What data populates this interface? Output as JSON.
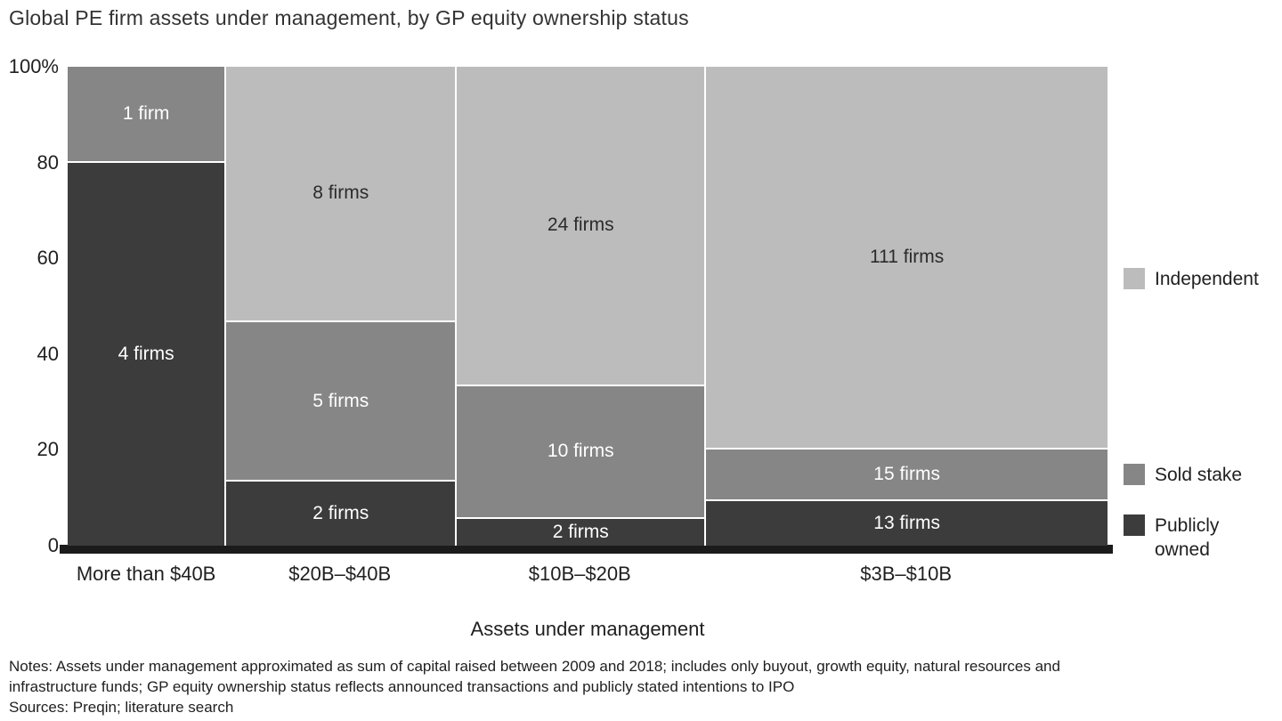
{
  "title": "Global PE firm assets under management, by GP equity ownership status",
  "chart_data": {
    "type": "bar",
    "variant": "marimekko-100pct-stacked",
    "title": "Global PE firm assets under management, by GP equity ownership status",
    "xlabel": "Assets under management",
    "ylabel": "",
    "unit": "% of firms",
    "ylim": [
      0,
      100
    ],
    "y_ticks": [
      "100%",
      "80",
      "60",
      "40",
      "20",
      "0"
    ],
    "grid": false,
    "categories": [
      "More than $40B",
      "$20B–$40B",
      "$10B–$20B",
      "$3B–$10B"
    ],
    "column_width_pct": [
      15.1,
      22.2,
      24.0,
      38.8
    ],
    "series": [
      {
        "name": "Independent",
        "color": "#bcbcbc",
        "label_color": "#2b2b2b",
        "values": [
          0,
          8,
          24,
          111
        ],
        "labels": [
          "",
          "8 firms",
          "24 firms",
          "111 firms"
        ]
      },
      {
        "name": "Sold stake",
        "color": "#868686",
        "label_color": "#ffffff",
        "values": [
          1,
          5,
          10,
          15
        ],
        "labels": [
          "1 firm",
          "5 firms",
          "10 firms",
          "15 firms"
        ]
      },
      {
        "name": "Publicly owned",
        "color": "#3c3c3c",
        "label_color": "#ffffff",
        "values": [
          4,
          2,
          2,
          13
        ],
        "labels": [
          "4 firms",
          "2 firms",
          "2 firms",
          "13 firms"
        ]
      }
    ],
    "legend": {
      "position": "right",
      "items": [
        "Independent",
        "Sold stake",
        "Publicly owned"
      ]
    }
  },
  "footer": {
    "notes_line1": "Notes: Assets under management approximated as sum of capital raised between 2009 and 2018; includes only buyout, growth equity, natural resources and",
    "notes_line2": "infrastructure funds; GP equity ownership status reflects announced transactions and publicly stated intentions to IPO",
    "sources": "Sources: Preqin; literature search"
  }
}
